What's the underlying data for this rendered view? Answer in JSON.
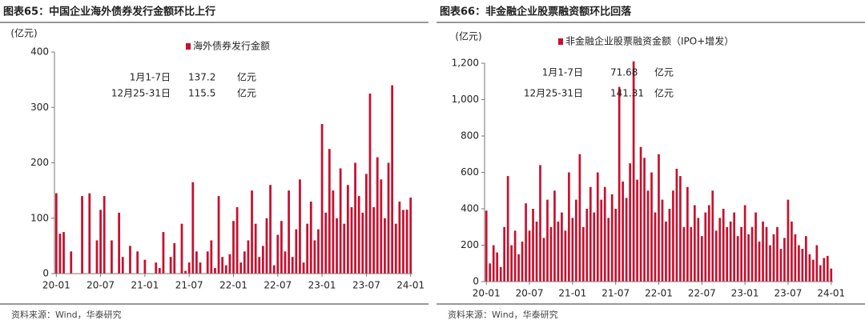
{
  "chart_data": [
    {
      "type": "bar",
      "title": "图表65：中国企业海外债券发行金额环比上行",
      "y_label": "(亿元)",
      "categories": [
        "20-01",
        null,
        null,
        null,
        null,
        null,
        null,
        null,
        null,
        null,
        null,
        null,
        "20-07",
        null,
        null,
        null,
        null,
        null,
        null,
        null,
        null,
        null,
        null,
        null,
        "21-01",
        null,
        null,
        null,
        null,
        null,
        null,
        null,
        null,
        null,
        null,
        null,
        "21-07",
        null,
        null,
        null,
        null,
        null,
        null,
        null,
        null,
        null,
        null,
        null,
        "22-01",
        null,
        null,
        null,
        null,
        null,
        null,
        null,
        null,
        null,
        null,
        null,
        "22-07",
        null,
        null,
        null,
        null,
        null,
        null,
        null,
        null,
        null,
        null,
        null,
        "23-01",
        null,
        null,
        null,
        null,
        null,
        null,
        null,
        null,
        null,
        null,
        null,
        "23-07",
        null,
        null,
        null,
        null,
        null,
        null,
        null,
        null,
        null,
        null,
        null,
        "24-01"
      ],
      "series": [
        {
          "name": "海外债券发行金额",
          "color": "#c8102e",
          "values": [
            145,
            72,
            75,
            0,
            40,
            0,
            0,
            140,
            0,
            145,
            0,
            60,
            115,
            140,
            0,
            60,
            0,
            110,
            30,
            0,
            50,
            0,
            40,
            0,
            25,
            0,
            0,
            20,
            10,
            75,
            0,
            30,
            55,
            0,
            90,
            5,
            20,
            165,
            40,
            20,
            0,
            40,
            60,
            10,
            140,
            30,
            15,
            35,
            95,
            120,
            20,
            40,
            60,
            150,
            90,
            30,
            50,
            100,
            160,
            15,
            70,
            95,
            40,
            150,
            30,
            80,
            170,
            20,
            90,
            130,
            60,
            80,
            270,
            110,
            225,
            150,
            100,
            190,
            90,
            160,
            120,
            200,
            140,
            110,
            180,
            325,
            120,
            210,
            170,
            100,
            200,
            340,
            90,
            130,
            115,
            115.5,
            137.2
          ]
        }
      ],
      "ylim": [
        0,
        400
      ],
      "yticks": [
        0,
        100,
        200,
        300,
        400
      ],
      "annotations": [
        [
          "1月1-7日",
          "137.2",
          "亿元"
        ],
        [
          "12月25-31日",
          "115.5",
          "亿元"
        ]
      ],
      "source": "资料来源：Wind，华泰研究"
    },
    {
      "type": "bar",
      "title": "图表66：非金融企业股票融资额环比回落",
      "y_label": "(亿元)",
      "categories": [
        "20-01",
        null,
        null,
        null,
        null,
        null,
        null,
        null,
        null,
        null,
        null,
        null,
        "20-07",
        null,
        null,
        null,
        null,
        null,
        null,
        null,
        null,
        null,
        null,
        null,
        "21-01",
        null,
        null,
        null,
        null,
        null,
        null,
        null,
        null,
        null,
        null,
        null,
        "21-07",
        null,
        null,
        null,
        null,
        null,
        null,
        null,
        null,
        null,
        null,
        null,
        "22-01",
        null,
        null,
        null,
        null,
        null,
        null,
        null,
        null,
        null,
        null,
        null,
        "22-07",
        null,
        null,
        null,
        null,
        null,
        null,
        null,
        null,
        null,
        null,
        null,
        "23-01",
        null,
        null,
        null,
        null,
        null,
        null,
        null,
        null,
        null,
        null,
        null,
        "23-07",
        null,
        null,
        null,
        null,
        null,
        null,
        null,
        null,
        null,
        null,
        null,
        "24-01"
      ],
      "series": [
        {
          "name": "非金融企业股票融资金额（IPO+增发）",
          "color": "#c8102e",
          "values": [
            390,
            100,
            200,
            160,
            80,
            300,
            580,
            200,
            280,
            150,
            220,
            430,
            280,
            400,
            330,
            640,
            240,
            450,
            300,
            500,
            330,
            380,
            280,
            600,
            350,
            450,
            700,
            300,
            400,
            520,
            380,
            600,
            450,
            520,
            350,
            480,
            400,
            1070,
            550,
            460,
            650,
            1210,
            560,
            740,
            680,
            500,
            600,
            380,
            700,
            450,
            330,
            400,
            500,
            620,
            580,
            300,
            520,
            300,
            420,
            350,
            250,
            380,
            420,
            500,
            280,
            350,
            400,
            300,
            330,
            380,
            250,
            300,
            420,
            260,
            300,
            380,
            220,
            330,
            300,
            200,
            260,
            300,
            180,
            240,
            450,
            330,
            260,
            200,
            180,
            250,
            150,
            120,
            200,
            90,
            130,
            141.31,
            71.68
          ]
        }
      ],
      "ylim": [
        0,
        1200
      ],
      "yticks": [
        0,
        200,
        400,
        600,
        800,
        {
          "value": 1000,
          "label": "1,000"
        },
        {
          "value": 1200,
          "label": "1,200"
        }
      ],
      "annotations": [
        [
          "1月1-7日",
          "71.68",
          "亿元"
        ],
        [
          "12月25-31日",
          "141.31",
          "亿元"
        ]
      ],
      "source": "资料来源：Wind，华泰研究"
    }
  ]
}
